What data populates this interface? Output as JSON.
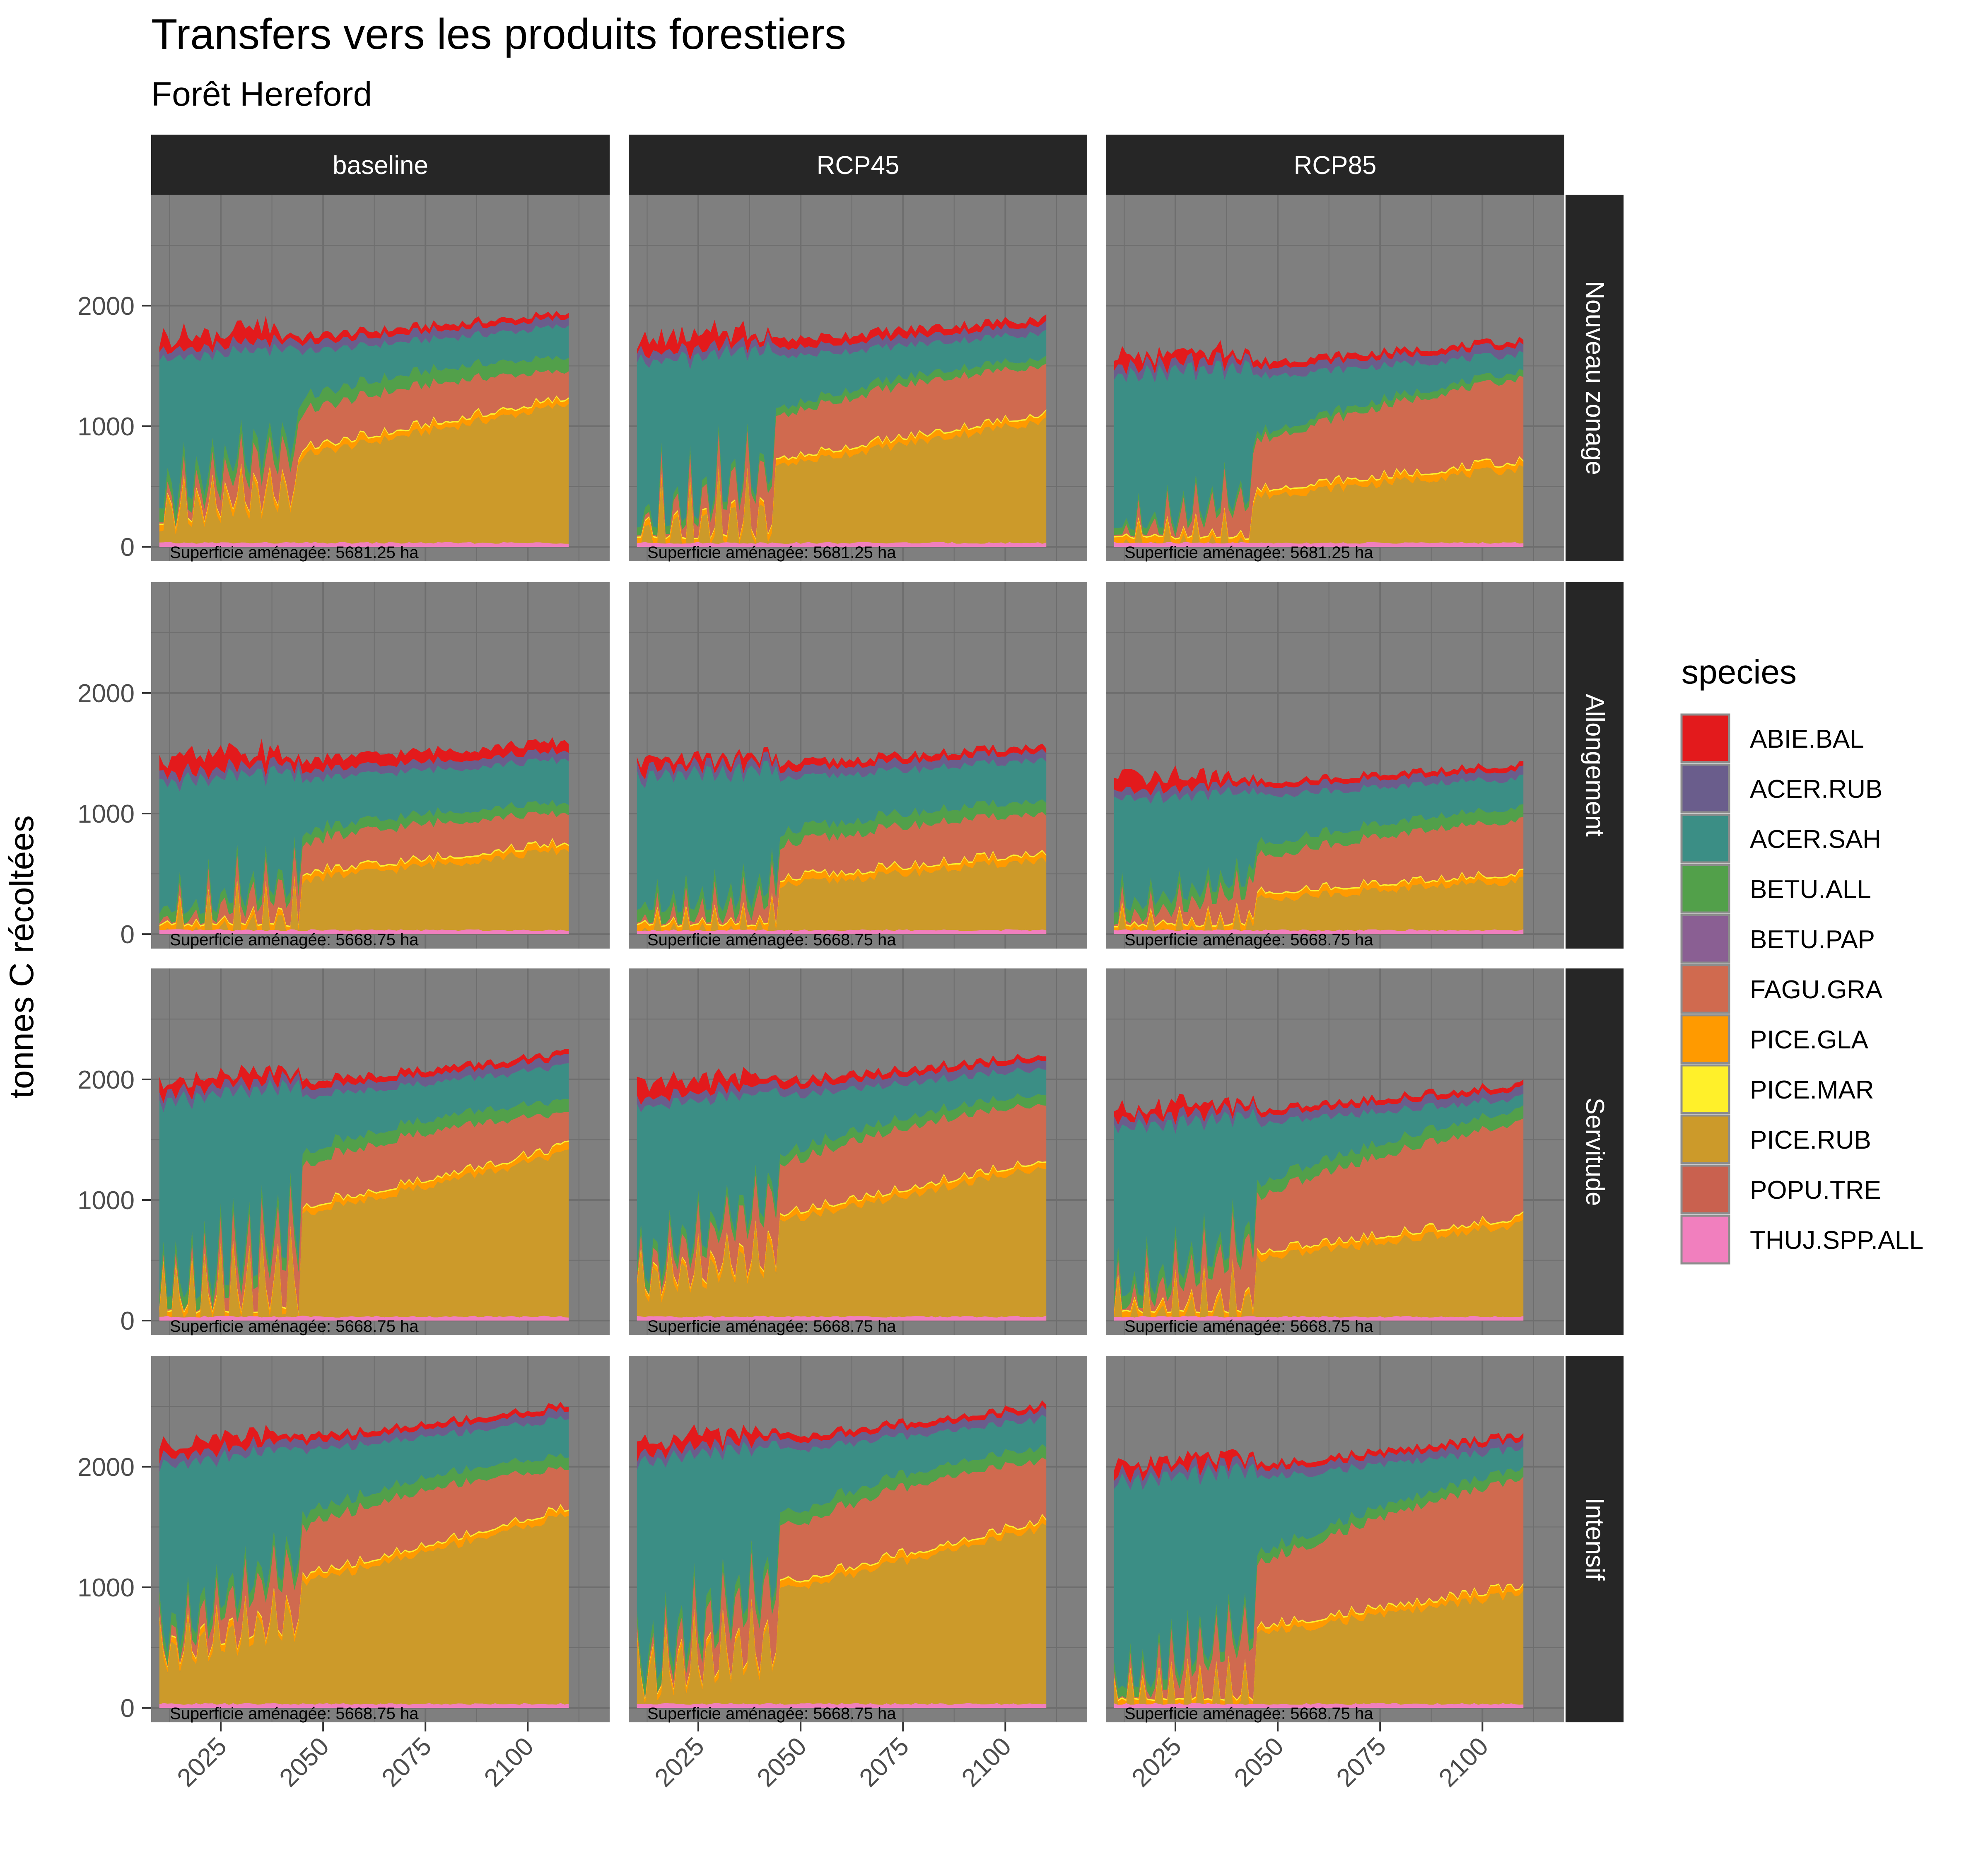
{
  "title": "Transfers vers les produits forestiers",
  "subtitle": "Forêt Hereford",
  "ylabel": "tonnes C récoltées",
  "legend_title": "species",
  "colors": {
    "panel_bg": "#7f7f7f",
    "grid": "#6e6e6e",
    "strip_bg": "#262626",
    "strip_text": "#ffffff",
    "axis_text": "#4d4d4d"
  },
  "chart_data": {
    "type": "area",
    "stacked": true,
    "x_ticks": [
      2025,
      2050,
      2075,
      2100
    ],
    "y_ticks": [
      0,
      1000,
      2000
    ],
    "xlim": [
      2008,
      2120
    ],
    "ylim": [
      -120,
      2920
    ],
    "grid": true,
    "legend_position": "right",
    "scenarios": [
      "baseline",
      "RCP45",
      "RCP85"
    ],
    "treatments": [
      "Nouveau zonage",
      "Allongement",
      "Servitude",
      "Intensif"
    ],
    "area_labels": [
      "Superficie aménagée: 5681.25 ha",
      "Superficie aménagée: 5668.75 ha",
      "Superficie aménagée: 5668.75 ha",
      "Superficie aménagée: 5668.75 ha"
    ],
    "series": [
      {
        "name": "ABIE.BAL",
        "color": "#e31a1c"
      },
      {
        "name": "ACER.RUB",
        "color": "#6a5d8c"
      },
      {
        "name": "ACER.SAH",
        "color": "#3b8e85"
      },
      {
        "name": "BETU.ALL",
        "color": "#52a04a"
      },
      {
        "name": "BETU.PAP",
        "color": "#8a5f93"
      },
      {
        "name": "FAGU.GRA",
        "color": "#d06a4f"
      },
      {
        "name": "PICE.GLA",
        "color": "#ff9a00"
      },
      {
        "name": "PICE.MAR",
        "color": "#fff02a"
      },
      {
        "name": "PICE.RUB",
        "color": "#cc9a2a"
      },
      {
        "name": "POPU.TRE",
        "color": "#c9614f"
      },
      {
        "name": "THUJ.SPP.ALL",
        "color": "#f17fbe"
      }
    ],
    "endpoints_2110": {
      "Nouveau zonage": {
        "baseline": [
          1180,
          1450,
          1560,
          1830,
          1930
        ],
        "RCP45": [
          1050,
          1500,
          1560,
          1780,
          1900
        ],
        "RCP85": [
          650,
          1400,
          1450,
          1600,
          1700
        ]
      },
      "Allongement": {
        "baseline": [
          700,
          1000,
          1080,
          1450,
          1600
        ],
        "RCP45": [
          620,
          1000,
          1100,
          1450,
          1560
        ],
        "RCP85": [
          450,
          950,
          1050,
          1300,
          1380
        ]
      },
      "Servitude": {
        "baseline": [
          1380,
          1700,
          1800,
          2100,
          2200
        ],
        "RCP45": [
          1280,
          1800,
          1880,
          2100,
          2200
        ],
        "RCP85": [
          800,
          1650,
          1750,
          1850,
          1920
        ]
      },
      "Intensif": {
        "baseline": [
          1600,
          1980,
          2080,
          2400,
          2480
        ],
        "RCP45": [
          1500,
          2050,
          2150,
          2400,
          2480
        ],
        "RCP85": [
          950,
          1900,
          1980,
          2150,
          2220
        ]
      }
    }
  }
}
